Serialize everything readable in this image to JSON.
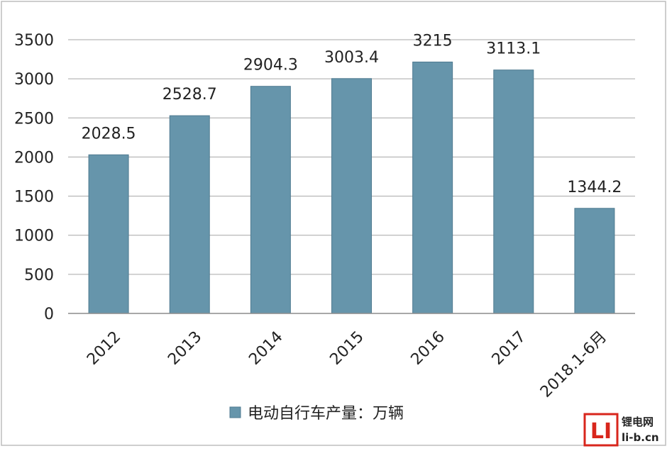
{
  "chart_data": {
    "type": "bar",
    "categories": [
      "2012",
      "2013",
      "2014",
      "2015",
      "2016",
      "2017",
      "2018.1-6月"
    ],
    "values": [
      2028.5,
      2528.7,
      2904.3,
      3003.4,
      3215,
      3113.1,
      1344.2
    ],
    "data_labels": [
      "2028.5",
      "2528.7",
      "2904.3",
      "3003.4",
      "3215",
      "3113.1",
      "1344.2"
    ],
    "ylim": [
      0,
      3500
    ],
    "yticks": [
      0,
      500,
      1000,
      1500,
      2000,
      2500,
      3000,
      3500
    ],
    "series": [
      {
        "name": "电动自行车产量：万辆",
        "values": [
          2028.5,
          2528.7,
          2904.3,
          3003.4,
          3215,
          3113.1,
          1344.2
        ]
      }
    ],
    "legend": {
      "label": "电动自行车产量：万辆",
      "position": "bottom"
    },
    "grid": true,
    "bar_color": "#6695ab",
    "bar_edge_color": "#4f7a90"
  },
  "watermark": {
    "logo_text": "LI",
    "line1": "锂电网",
    "line2": "li-b.cn",
    "logo_color": "#d8261c"
  }
}
